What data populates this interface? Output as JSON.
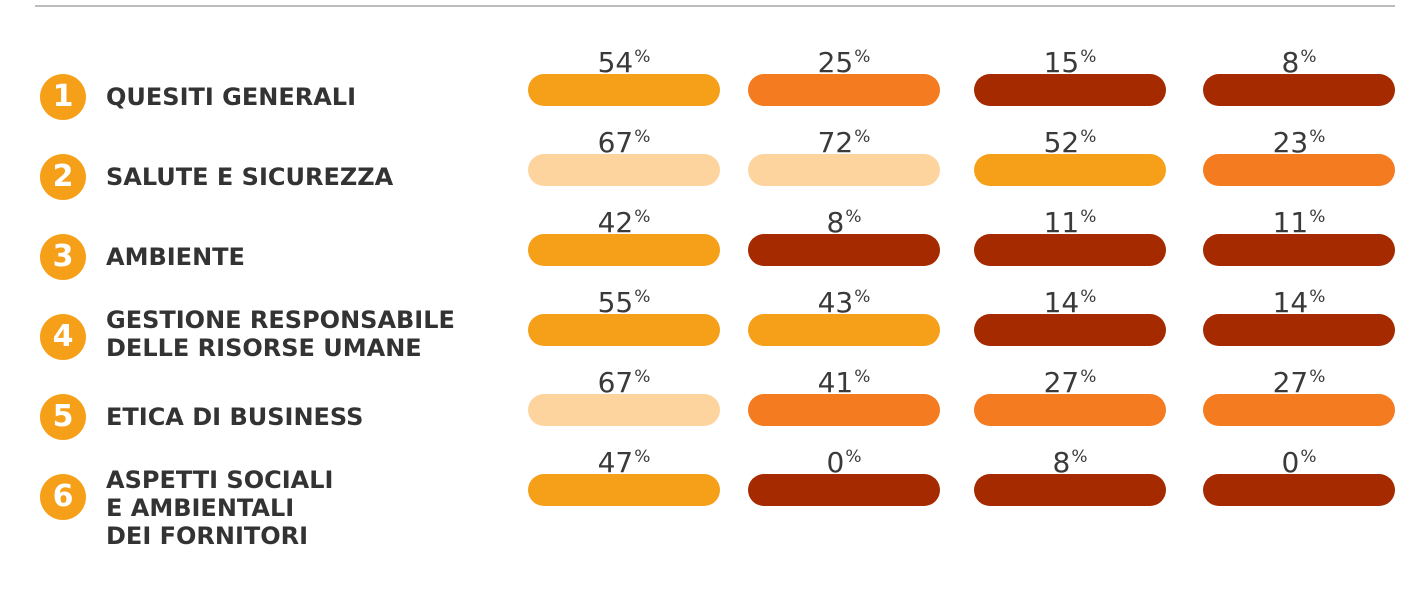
{
  "chart_data": {
    "type": "table",
    "unit": "%",
    "colors": {
      "badge": "#f6a01a",
      "very_high": "#fdd49e",
      "high": "#f6a01a",
      "medium": "#f47b20",
      "low": "#a52a00"
    },
    "rows": [
      {
        "number": "1",
        "label_lines": [
          "QUESITI GENERALI"
        ],
        "values": [
          54,
          25,
          15,
          8
        ],
        "value_labels": [
          "54",
          "25",
          "15",
          "8"
        ],
        "colors": [
          "#f6a01a",
          "#f47b20",
          "#a52a00",
          "#a52a00"
        ]
      },
      {
        "number": "2",
        "label_lines": [
          "SALUTE E SICUREZZA"
        ],
        "values": [
          67,
          72,
          52,
          23
        ],
        "value_labels": [
          "67",
          "72",
          "52",
          "23"
        ],
        "colors": [
          "#fdd49e",
          "#fdd49e",
          "#f6a01a",
          "#f47b20"
        ]
      },
      {
        "number": "3",
        "label_lines": [
          "AMBIENTE"
        ],
        "values": [
          42,
          8,
          11,
          11
        ],
        "value_labels": [
          "42",
          "8",
          "11",
          "11"
        ],
        "colors": [
          "#f6a01a",
          "#a52a00",
          "#a52a00",
          "#a52a00"
        ]
      },
      {
        "number": "4",
        "label_lines": [
          "GESTIONE RESPONSABILE",
          "DELLE RISORSE UMANE"
        ],
        "values": [
          55,
          43,
          14,
          14
        ],
        "value_labels": [
          "55",
          "43",
          "14",
          "14"
        ],
        "colors": [
          "#f6a01a",
          "#f6a01a",
          "#a52a00",
          "#a52a00"
        ]
      },
      {
        "number": "5",
        "label_lines": [
          "ETICA DI BUSINESS"
        ],
        "values": [
          67,
          41,
          27,
          27
        ],
        "value_labels": [
          "67",
          "41",
          "27",
          "27"
        ],
        "colors": [
          "#fdd49e",
          "#f47b20",
          "#f47b20",
          "#f47b20"
        ]
      },
      {
        "number": "6",
        "label_lines": [
          "ASPETTI SOCIALI",
          "E AMBIENTALI",
          "DEI FORNITORI"
        ],
        "values": [
          47,
          0,
          8,
          0
        ],
        "value_labels": [
          "47",
          "0",
          "8",
          "0"
        ],
        "colors": [
          "#f6a01a",
          "#a52a00",
          "#a52a00",
          "#a52a00"
        ]
      }
    ]
  }
}
